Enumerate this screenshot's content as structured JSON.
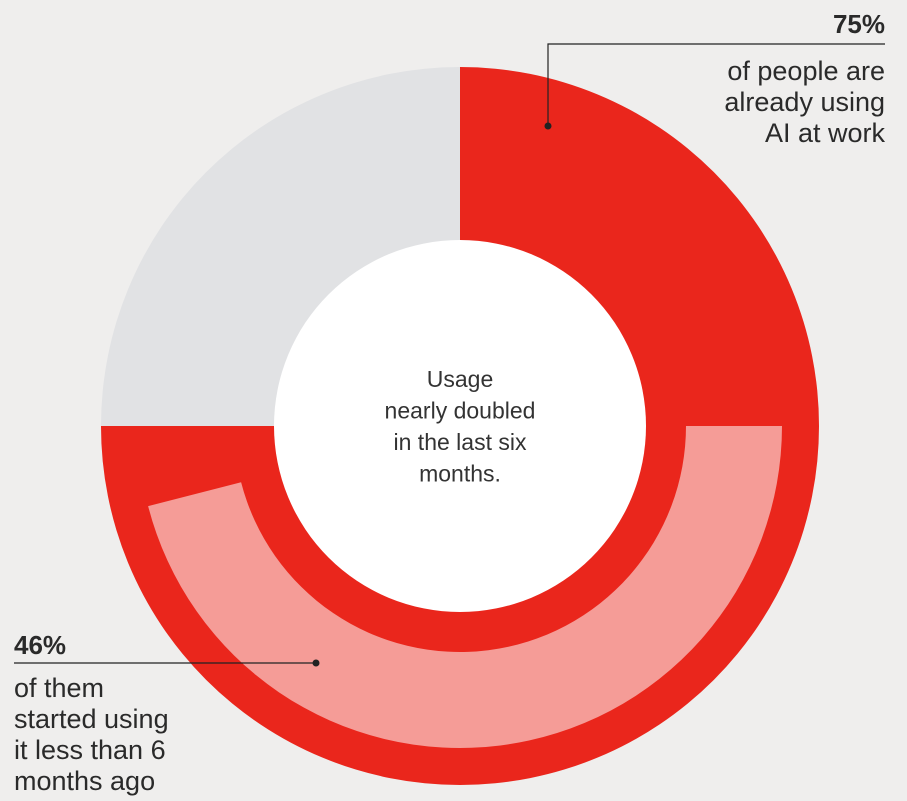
{
  "chart_data": {
    "type": "donut",
    "center_text": [
      "Usage",
      "nearly doubled",
      "in the last six",
      "months."
    ],
    "rings": [
      {
        "value": 75,
        "value_label": "75%",
        "text": [
          "of people are",
          "already using",
          "AI at work"
        ],
        "color": "#ea261c",
        "track_color": "#e1e2e4"
      },
      {
        "value": 46,
        "value_label": "46%",
        "text": [
          "of them",
          "started using",
          "it less than 6",
          "months ago"
        ],
        "color": "#f59c97"
      }
    ]
  }
}
